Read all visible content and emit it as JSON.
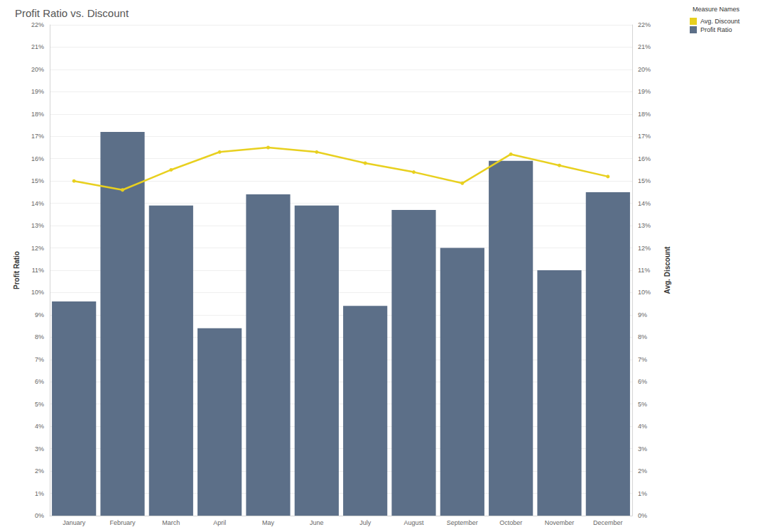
{
  "chart_data": {
    "type": "bar",
    "title": "Profit Ratio vs. Discount",
    "legend_title": "Measure Names",
    "legend": "top-right",
    "grid": true,
    "ylabel": "Profit Ratio",
    "y2label": "Avg. Discount",
    "categories": [
      "January",
      "February",
      "March",
      "April",
      "May",
      "June",
      "July",
      "August",
      "September",
      "October",
      "November",
      "December"
    ],
    "series": [
      {
        "name": "Avg. Discount",
        "type": "line",
        "axis": "y2",
        "color": "#e8d01f",
        "marker": "circle",
        "values": [
          15.0,
          14.6,
          15.5,
          16.3,
          16.5,
          16.3,
          15.8,
          15.4,
          14.9,
          16.2,
          15.7,
          15.2
        ]
      },
      {
        "name": "Profit Ratio",
        "type": "bar",
        "color": "#5c6f88",
        "values": [
          9.6,
          17.2,
          13.9,
          8.4,
          14.4,
          13.9,
          9.4,
          13.7,
          12.0,
          15.9,
          11.0,
          14.5
        ]
      }
    ],
    "ylim": [
      0,
      22
    ],
    "yticks": [
      {
        "value": 0,
        "label": "0%"
      },
      {
        "value": 1,
        "label": "1%"
      },
      {
        "value": 2,
        "label": "2%"
      },
      {
        "value": 3,
        "label": "3%"
      },
      {
        "value": 4,
        "label": "4%"
      },
      {
        "value": 5,
        "label": "5%"
      },
      {
        "value": 6,
        "label": "6%"
      },
      {
        "value": 7,
        "label": "7%"
      },
      {
        "value": 8,
        "label": "8%"
      },
      {
        "value": 9,
        "label": "9%"
      },
      {
        "value": 10,
        "label": "10%"
      },
      {
        "value": 11,
        "label": "11%"
      },
      {
        "value": 12,
        "label": "12%"
      },
      {
        "value": 13,
        "label": "13%"
      },
      {
        "value": 14,
        "label": "14%"
      },
      {
        "value": 15,
        "label": "15%"
      },
      {
        "value": 16,
        "label": "16%"
      },
      {
        "value": 17,
        "label": "17%"
      },
      {
        "value": 18,
        "label": "18%"
      },
      {
        "value": 19,
        "label": "19%"
      },
      {
        "value": 20,
        "label": "20%"
      },
      {
        "value": 21,
        "label": "21%"
      },
      {
        "value": 22,
        "label": "22%"
      }
    ],
    "y2lim": [
      0,
      22
    ],
    "y2ticks": [
      {
        "value": 0,
        "label": "0%"
      },
      {
        "value": 1,
        "label": "1%"
      },
      {
        "value": 2,
        "label": "2%"
      },
      {
        "value": 3,
        "label": "3%"
      },
      {
        "value": 4,
        "label": "4%"
      },
      {
        "value": 5,
        "label": "5%"
      },
      {
        "value": 6,
        "label": "6%"
      },
      {
        "value": 7,
        "label": "7%"
      },
      {
        "value": 8,
        "label": "8%"
      },
      {
        "value": 9,
        "label": "9%"
      },
      {
        "value": 10,
        "label": "10%"
      },
      {
        "value": 11,
        "label": "11%"
      },
      {
        "value": 12,
        "label": "12%"
      },
      {
        "value": 13,
        "label": "13%"
      },
      {
        "value": 14,
        "label": "14%"
      },
      {
        "value": 15,
        "label": "15%"
      },
      {
        "value": 16,
        "label": "16%"
      },
      {
        "value": 17,
        "label": "17%"
      },
      {
        "value": 18,
        "label": "18%"
      },
      {
        "value": 19,
        "label": "19%"
      },
      {
        "value": 20,
        "label": "20%"
      },
      {
        "value": 21,
        "label": "21%"
      },
      {
        "value": 22,
        "label": "22%"
      }
    ]
  }
}
